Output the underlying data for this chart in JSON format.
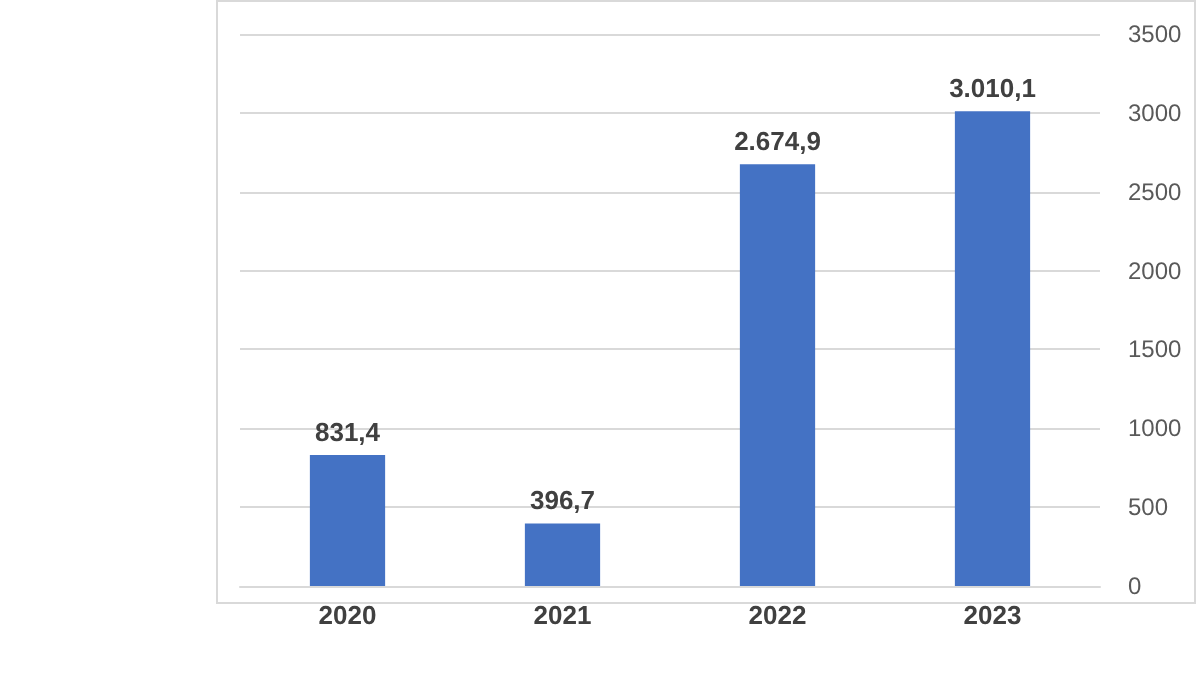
{
  "chart_data": {
    "type": "bar",
    "categories": [
      "2020",
      "2021",
      "2022",
      "2023"
    ],
    "values": [
      831.4,
      396.7,
      2674.9,
      3010.1
    ],
    "value_labels": [
      "831,4",
      "396,7",
      "2.674,9",
      "3.010,1"
    ],
    "color": "#4472c4",
    "ylim": [
      0,
      3500
    ],
    "yticks": [
      0,
      500,
      1000,
      1500,
      2000,
      2500,
      3000,
      3500
    ],
    "grid": "y"
  }
}
